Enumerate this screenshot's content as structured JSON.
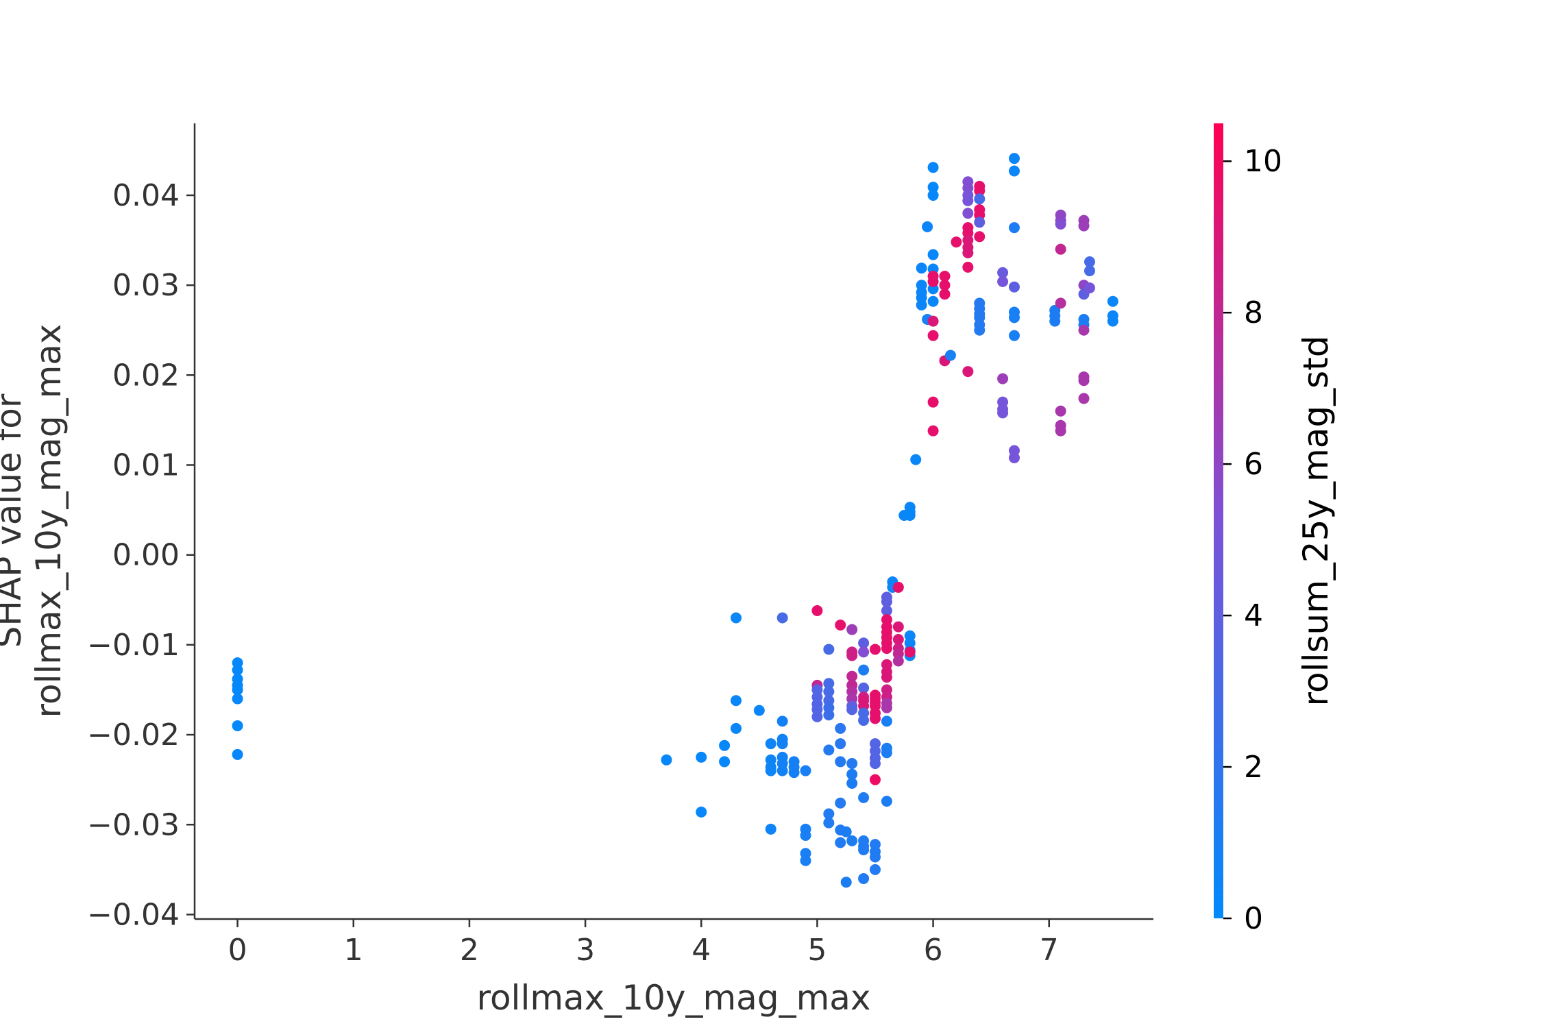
{
  "chart_data": {
    "type": "scatter",
    "xlabel": "rollmax_10y_mag_max",
    "ylabel_lines": [
      "SHAP value for",
      "rollmax_10y_mag_max"
    ],
    "x_ticks": [
      "0",
      "1",
      "2",
      "3",
      "4",
      "5",
      "6",
      "7"
    ],
    "y_ticks": [
      "0.04",
      "0.03",
      "0.02",
      "0.01",
      "0.00",
      "−0.01",
      "−0.02",
      "−0.03",
      "−0.04"
    ],
    "xlim": [
      -0.37,
      7.9
    ],
    "ylim": [
      -0.0405,
      0.048
    ],
    "colorbar": {
      "label": "rollsum_25y_mag_std",
      "ticks": [
        "0",
        "2",
        "4",
        "6",
        "8",
        "10"
      ],
      "range": [
        0,
        10.5
      ],
      "low_color": "#008afb",
      "mid_color": "#7c52d8",
      "high_color": "#ff0052"
    },
    "points": [
      [
        0,
        -0.012,
        0.2
      ],
      [
        0,
        -0.0128,
        0.3
      ],
      [
        0,
        -0.0138,
        0.2
      ],
      [
        0,
        -0.0145,
        0.3
      ],
      [
        0,
        -0.015,
        0.2
      ],
      [
        0,
        -0.016,
        0.3
      ],
      [
        0,
        -0.019,
        0.2
      ],
      [
        0,
        -0.0222,
        0.3
      ],
      [
        3.7,
        -0.0228,
        0.3
      ],
      [
        4.0,
        -0.0225,
        0.3
      ],
      [
        4.0,
        -0.0286,
        0.3
      ],
      [
        4.2,
        -0.0212,
        0.3
      ],
      [
        4.2,
        -0.023,
        0.3
      ],
      [
        4.3,
        -0.007,
        0.4
      ],
      [
        4.3,
        -0.0162,
        0.4
      ],
      [
        4.3,
        -0.0193,
        0.4
      ],
      [
        4.5,
        -0.0173,
        0.5
      ],
      [
        4.6,
        -0.021,
        0.6
      ],
      [
        4.6,
        -0.0228,
        0.6
      ],
      [
        4.6,
        -0.0236,
        0.6
      ],
      [
        4.6,
        -0.024,
        0.6
      ],
      [
        4.6,
        -0.0305,
        0.6
      ],
      [
        4.7,
        -0.007,
        3.0
      ],
      [
        4.7,
        -0.0185,
        0.8
      ],
      [
        4.7,
        -0.0205,
        0.8
      ],
      [
        4.7,
        -0.021,
        0.8
      ],
      [
        4.7,
        -0.0225,
        0.8
      ],
      [
        4.7,
        -0.0232,
        0.8
      ],
      [
        4.7,
        -0.024,
        0.8
      ],
      [
        4.8,
        -0.023,
        0.9
      ],
      [
        4.8,
        -0.0236,
        0.9
      ],
      [
        4.8,
        -0.0242,
        0.9
      ],
      [
        4.9,
        -0.024,
        1.0
      ],
      [
        4.9,
        -0.0305,
        1.0
      ],
      [
        4.9,
        -0.0312,
        1.0
      ],
      [
        4.9,
        -0.0332,
        1.0
      ],
      [
        4.9,
        -0.034,
        1.0
      ],
      [
        5.0,
        -0.0062,
        9.5
      ],
      [
        5.0,
        -0.0145,
        8.0
      ],
      [
        5.0,
        -0.015,
        3.5
      ],
      [
        5.0,
        -0.0158,
        3.5
      ],
      [
        5.0,
        -0.0166,
        3.5
      ],
      [
        5.0,
        -0.0172,
        3.5
      ],
      [
        5.0,
        -0.018,
        3.5
      ],
      [
        5.1,
        -0.0105,
        3.0
      ],
      [
        5.1,
        -0.0143,
        3.0
      ],
      [
        5.1,
        -0.0152,
        3.0
      ],
      [
        5.1,
        -0.0162,
        3.0
      ],
      [
        5.1,
        -0.017,
        2.5
      ],
      [
        5.1,
        -0.0178,
        2.5
      ],
      [
        5.1,
        -0.0217,
        1.5
      ],
      [
        5.1,
        -0.0288,
        1.4
      ],
      [
        5.1,
        -0.0298,
        1.4
      ],
      [
        5.2,
        -0.0078,
        9.5
      ],
      [
        5.2,
        -0.0193,
        1.8
      ],
      [
        5.2,
        -0.021,
        1.8
      ],
      [
        5.2,
        -0.023,
        1.5
      ],
      [
        5.2,
        -0.0276,
        1.5
      ],
      [
        5.2,
        -0.0306,
        1.4
      ],
      [
        5.2,
        -0.032,
        1.4
      ],
      [
        5.25,
        -0.0364,
        1.2
      ],
      [
        5.3,
        -0.0083,
        6.5
      ],
      [
        5.3,
        -0.0108,
        8.5
      ],
      [
        5.3,
        -0.0112,
        8.5
      ],
      [
        5.3,
        -0.0135,
        8.0
      ],
      [
        5.3,
        -0.0145,
        8.0
      ],
      [
        5.3,
        -0.0152,
        7.5
      ],
      [
        5.3,
        -0.016,
        7.0
      ],
      [
        5.3,
        -0.0168,
        4.5
      ],
      [
        5.3,
        -0.0172,
        3.5
      ],
      [
        5.3,
        -0.0232,
        1.5
      ],
      [
        5.3,
        -0.0244,
        1.2
      ],
      [
        5.3,
        -0.0254,
        1.2
      ],
      [
        5.3,
        -0.0318,
        1.2
      ],
      [
        5.25,
        -0.0308,
        1.2
      ],
      [
        5.4,
        -0.0098,
        4.0
      ],
      [
        5.4,
        -0.0108,
        5.5
      ],
      [
        5.4,
        -0.0128,
        1.2
      ],
      [
        5.4,
        -0.0148,
        3.5
      ],
      [
        5.4,
        -0.0158,
        8.5
      ],
      [
        5.4,
        -0.0162,
        9.0
      ],
      [
        5.4,
        -0.0168,
        9.0
      ],
      [
        5.4,
        -0.0176,
        3.0
      ],
      [
        5.4,
        -0.0184,
        3.0
      ],
      [
        5.4,
        -0.027,
        1.4
      ],
      [
        5.4,
        -0.0318,
        1.4
      ],
      [
        5.4,
        -0.0324,
        1.4
      ],
      [
        5.4,
        -0.0328,
        1.4
      ],
      [
        5.4,
        -0.036,
        1.4
      ],
      [
        5.5,
        -0.0105,
        9.5
      ],
      [
        5.5,
        -0.0156,
        9.5
      ],
      [
        5.5,
        -0.016,
        9.5
      ],
      [
        5.5,
        -0.0164,
        9.5
      ],
      [
        5.5,
        -0.0168,
        9.5
      ],
      [
        5.5,
        -0.0176,
        9.5
      ],
      [
        5.5,
        -0.0182,
        9.5
      ],
      [
        5.5,
        -0.021,
        3.5
      ],
      [
        5.5,
        -0.0218,
        3.5
      ],
      [
        5.5,
        -0.0226,
        3.5
      ],
      [
        5.5,
        -0.0232,
        3.5
      ],
      [
        5.5,
        -0.025,
        9.8
      ],
      [
        5.5,
        -0.0322,
        1.4
      ],
      [
        5.5,
        -0.033,
        1.4
      ],
      [
        5.5,
        -0.0336,
        1.4
      ],
      [
        5.5,
        -0.035,
        1.4
      ],
      [
        5.6,
        -0.0047,
        4.0
      ],
      [
        5.6,
        -0.0052,
        4.0
      ],
      [
        5.6,
        -0.0062,
        4.0
      ],
      [
        5.6,
        -0.0072,
        9.5
      ],
      [
        5.6,
        -0.008,
        9.5
      ],
      [
        5.6,
        -0.0086,
        9.5
      ],
      [
        5.6,
        -0.0092,
        9.5
      ],
      [
        5.6,
        -0.0098,
        9.5
      ],
      [
        5.6,
        -0.0104,
        9.5
      ],
      [
        5.6,
        -0.0122,
        9.0
      ],
      [
        5.6,
        -0.013,
        9.0
      ],
      [
        5.6,
        -0.0136,
        9.0
      ],
      [
        5.6,
        -0.015,
        8.5
      ],
      [
        5.6,
        -0.0158,
        8.5
      ],
      [
        5.6,
        -0.0165,
        7.0
      ],
      [
        5.6,
        -0.017,
        7.0
      ],
      [
        5.6,
        -0.0185,
        1.0
      ],
      [
        5.6,
        -0.0215,
        1.2
      ],
      [
        5.6,
        -0.022,
        1.2
      ],
      [
        5.6,
        -0.0274,
        1.2
      ],
      [
        5.65,
        -0.003,
        0.5
      ],
      [
        5.65,
        -0.0036,
        0.5
      ],
      [
        5.7,
        -0.0036,
        9.5
      ],
      [
        5.7,
        -0.008,
        9.0
      ],
      [
        5.7,
        -0.0094,
        9.0
      ],
      [
        5.7,
        -0.0104,
        8.5
      ],
      [
        5.7,
        -0.011,
        8.0
      ],
      [
        5.7,
        -0.0118,
        7.5
      ],
      [
        5.8,
        -0.009,
        0.5
      ],
      [
        5.8,
        -0.0098,
        0.5
      ],
      [
        5.8,
        -0.0106,
        0.5
      ],
      [
        5.8,
        -0.0112,
        0.5
      ],
      [
        5.8,
        -0.0108,
        9.5
      ],
      [
        5.75,
        0.0044,
        0.4
      ],
      [
        5.8,
        0.0048,
        0.4
      ],
      [
        5.8,
        0.0053,
        0.4
      ],
      [
        5.8,
        0.0044,
        0.4
      ],
      [
        5.85,
        0.0106,
        0.4
      ],
      [
        5.9,
        0.0278,
        0.5
      ],
      [
        5.9,
        0.0286,
        0.5
      ],
      [
        5.9,
        0.0292,
        0.5
      ],
      [
        5.9,
        0.03,
        0.5
      ],
      [
        5.9,
        0.0319,
        0.5
      ],
      [
        5.95,
        0.0365,
        0.5
      ],
      [
        5.95,
        0.0262,
        1.0
      ],
      [
        6.0,
        0.0431,
        0.3
      ],
      [
        6.0,
        0.0409,
        0.3
      ],
      [
        6.0,
        0.04,
        0.3
      ],
      [
        6.0,
        0.0334,
        0.3
      ],
      [
        6.0,
        0.0318,
        0.4
      ],
      [
        6.0,
        0.0296,
        0.4
      ],
      [
        6.0,
        0.0282,
        0.4
      ],
      [
        6.0,
        0.031,
        9.5
      ],
      [
        6.0,
        0.0304,
        9.5
      ],
      [
        6.0,
        0.026,
        9.0
      ],
      [
        6.0,
        0.0244,
        9.5
      ],
      [
        6.0,
        0.017,
        9.5
      ],
      [
        6.0,
        0.0138,
        9.5
      ],
      [
        6.1,
        0.031,
        9.5
      ],
      [
        6.1,
        0.03,
        9.5
      ],
      [
        6.1,
        0.029,
        9.5
      ],
      [
        6.1,
        0.0216,
        9.0
      ],
      [
        6.15,
        0.0222,
        1.0
      ],
      [
        6.2,
        0.0348,
        9.5
      ],
      [
        6.3,
        0.0415,
        5.5
      ],
      [
        6.3,
        0.0408,
        5.5
      ],
      [
        6.3,
        0.04,
        5.0
      ],
      [
        6.3,
        0.0394,
        5.0
      ],
      [
        6.3,
        0.038,
        5.5
      ],
      [
        6.3,
        0.0364,
        9.5
      ],
      [
        6.3,
        0.0358,
        9.5
      ],
      [
        6.3,
        0.035,
        9.0
      ],
      [
        6.3,
        0.0342,
        9.0
      ],
      [
        6.3,
        0.0336,
        9.0
      ],
      [
        6.3,
        0.032,
        9.5
      ],
      [
        6.3,
        0.0204,
        9.0
      ],
      [
        6.4,
        0.041,
        9.5
      ],
      [
        6.4,
        0.0405,
        9.5
      ],
      [
        6.4,
        0.0396,
        3.0
      ],
      [
        6.4,
        0.0384,
        9.5
      ],
      [
        6.4,
        0.0378,
        9.5
      ],
      [
        6.4,
        0.037,
        4.0
      ],
      [
        6.4,
        0.0354,
        9.5
      ],
      [
        6.4,
        0.028,
        1.5
      ],
      [
        6.4,
        0.0274,
        1.5
      ],
      [
        6.4,
        0.0268,
        1.5
      ],
      [
        6.4,
        0.0264,
        1.5
      ],
      [
        6.4,
        0.0256,
        1.5
      ],
      [
        6.4,
        0.025,
        1.5
      ],
      [
        6.6,
        0.0314,
        4.5
      ],
      [
        6.6,
        0.0304,
        5.0
      ],
      [
        6.6,
        0.0196,
        6.5
      ],
      [
        6.6,
        0.017,
        5.0
      ],
      [
        6.6,
        0.0162,
        5.0
      ],
      [
        6.6,
        0.0158,
        5.0
      ],
      [
        6.7,
        0.0441,
        0.5
      ],
      [
        6.7,
        0.0427,
        0.5
      ],
      [
        6.7,
        0.0364,
        1.2
      ],
      [
        6.7,
        0.0298,
        4.0
      ],
      [
        6.7,
        0.027,
        1.0
      ],
      [
        6.7,
        0.0264,
        1.0
      ],
      [
        6.7,
        0.0244,
        1.0
      ],
      [
        6.7,
        0.0116,
        5.0
      ],
      [
        6.7,
        0.0108,
        5.0
      ],
      [
        7.05,
        0.0272,
        1.2
      ],
      [
        7.05,
        0.0266,
        1.2
      ],
      [
        7.05,
        0.026,
        1.2
      ],
      [
        7.1,
        0.0378,
        6.0
      ],
      [
        7.1,
        0.0372,
        6.0
      ],
      [
        7.1,
        0.0368,
        5.5
      ],
      [
        7.1,
        0.034,
        8.0
      ],
      [
        7.1,
        0.028,
        7.5
      ],
      [
        7.1,
        0.016,
        7.0
      ],
      [
        7.1,
        0.0144,
        7.0
      ],
      [
        7.1,
        0.0138,
        7.0
      ],
      [
        7.3,
        0.0372,
        6.5
      ],
      [
        7.3,
        0.0366,
        6.5
      ],
      [
        7.3,
        0.03,
        6.0
      ],
      [
        7.3,
        0.029,
        4.0
      ],
      [
        7.3,
        0.0262,
        1.2
      ],
      [
        7.3,
        0.0256,
        1.2
      ],
      [
        7.3,
        0.025,
        7.0
      ],
      [
        7.3,
        0.0198,
        7.0
      ],
      [
        7.3,
        0.0194,
        7.0
      ],
      [
        7.3,
        0.0174,
        7.0
      ],
      [
        7.35,
        0.0326,
        3.0
      ],
      [
        7.35,
        0.0316,
        3.0
      ],
      [
        7.35,
        0.0297,
        5.0
      ],
      [
        7.55,
        0.0282,
        0.5
      ],
      [
        7.55,
        0.0266,
        0.5
      ],
      [
        7.55,
        0.026,
        0.5
      ]
    ]
  }
}
